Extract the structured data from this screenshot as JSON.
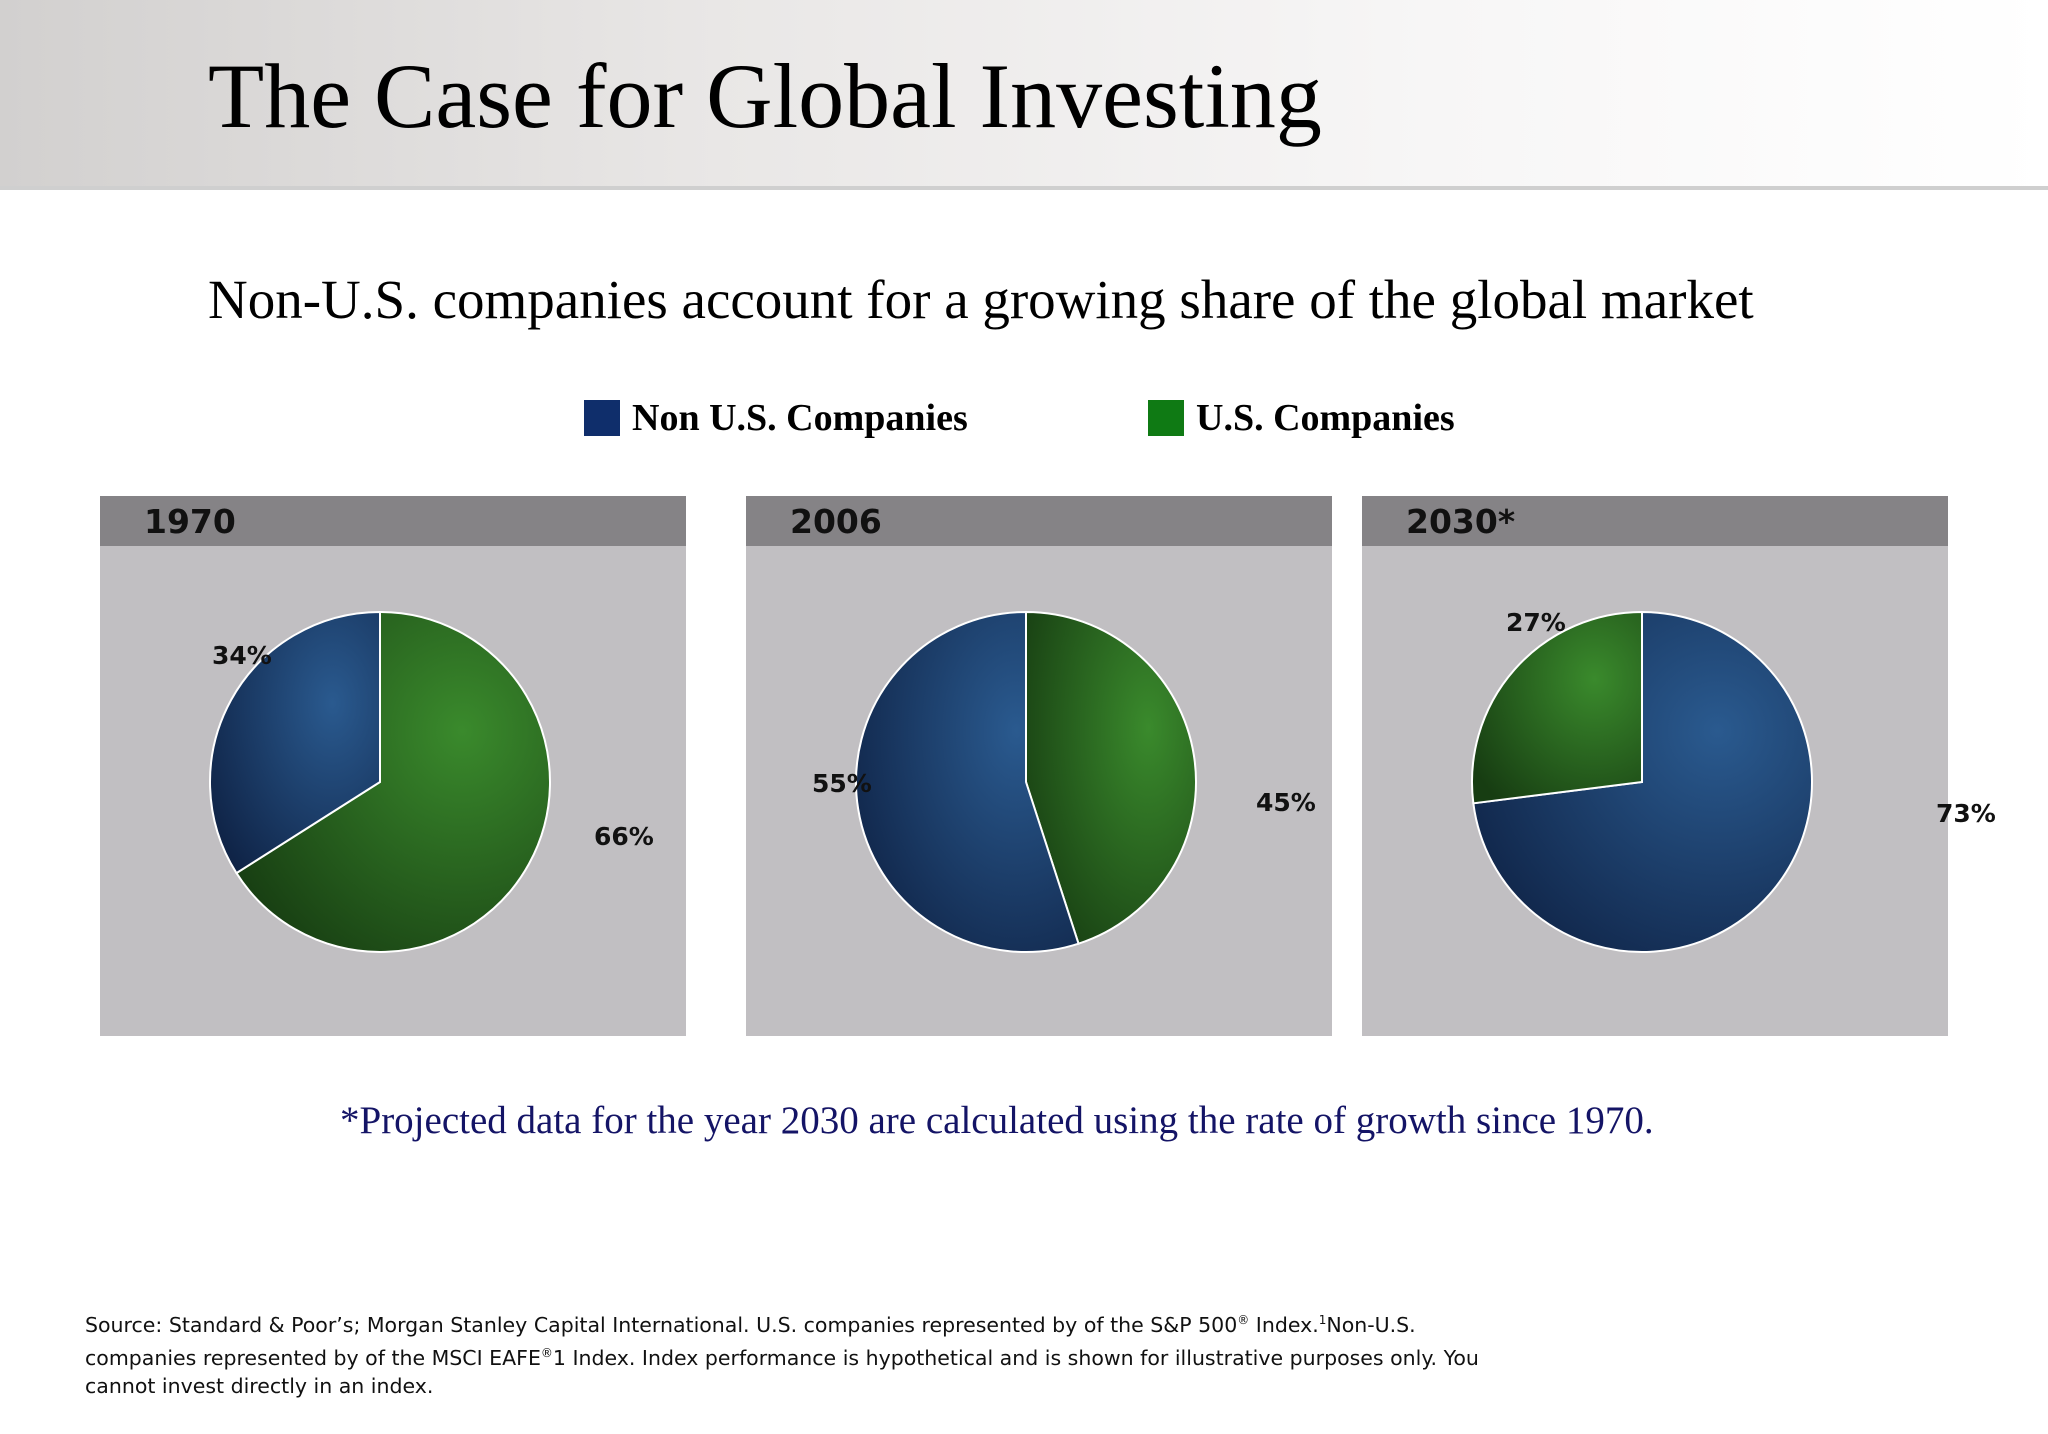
{
  "header": {
    "title": "The Case for Global Investing",
    "title_mark": " "
  },
  "subtitle": "Non-U.S. companies account for a growing share of the global market",
  "colors": {
    "non_us": "#0f2e6b",
    "us": "#0f7a14",
    "panel_bg": "#c1bfc2",
    "panel_head": "#858386"
  },
  "chart_data": [
    {
      "type": "pie",
      "title": "1970",
      "categories": [
        "Non U.S. Companies",
        "U.S. Companies"
      ],
      "values": [
        34,
        66
      ],
      "labels": [
        "34%",
        "66%"
      ]
    },
    {
      "type": "pie",
      "title": "2006",
      "categories": [
        "Non U.S. Companies",
        "U.S. Companies"
      ],
      "values": [
        55,
        45
      ],
      "labels": [
        "55%",
        "45%"
      ]
    },
    {
      "type": "pie",
      "title": "2030*",
      "categories": [
        "Non U.S. Companies",
        "U.S. Companies"
      ],
      "values": [
        73,
        27
      ],
      "labels": [
        "73%",
        "27%"
      ]
    }
  ],
  "legend": [
    {
      "label": "Non U.S. Companies",
      "color": "#0f2e6b"
    },
    {
      "label": "U.S. Companies",
      "color": "#0f7a14"
    }
  ],
  "footnote": "*Projected data for the year 2030 are calculated using the rate of growth since 1970.",
  "source": {
    "line1_a": "Source: Standard & Poor’s; Morgan Stanley Capital International. U.S. companies represented by of the S&P 500",
    "reg1": "®",
    "line1_b": " Index.",
    "sup1": "1",
    "line1_c": "Non-U.S. companies represented by of the MSCI EAFE",
    "reg2": "®",
    "line1_d": "1 Index. Index performance is hypothetical and is shown for illustrative purposes only. You cannot invest directly in an index."
  }
}
